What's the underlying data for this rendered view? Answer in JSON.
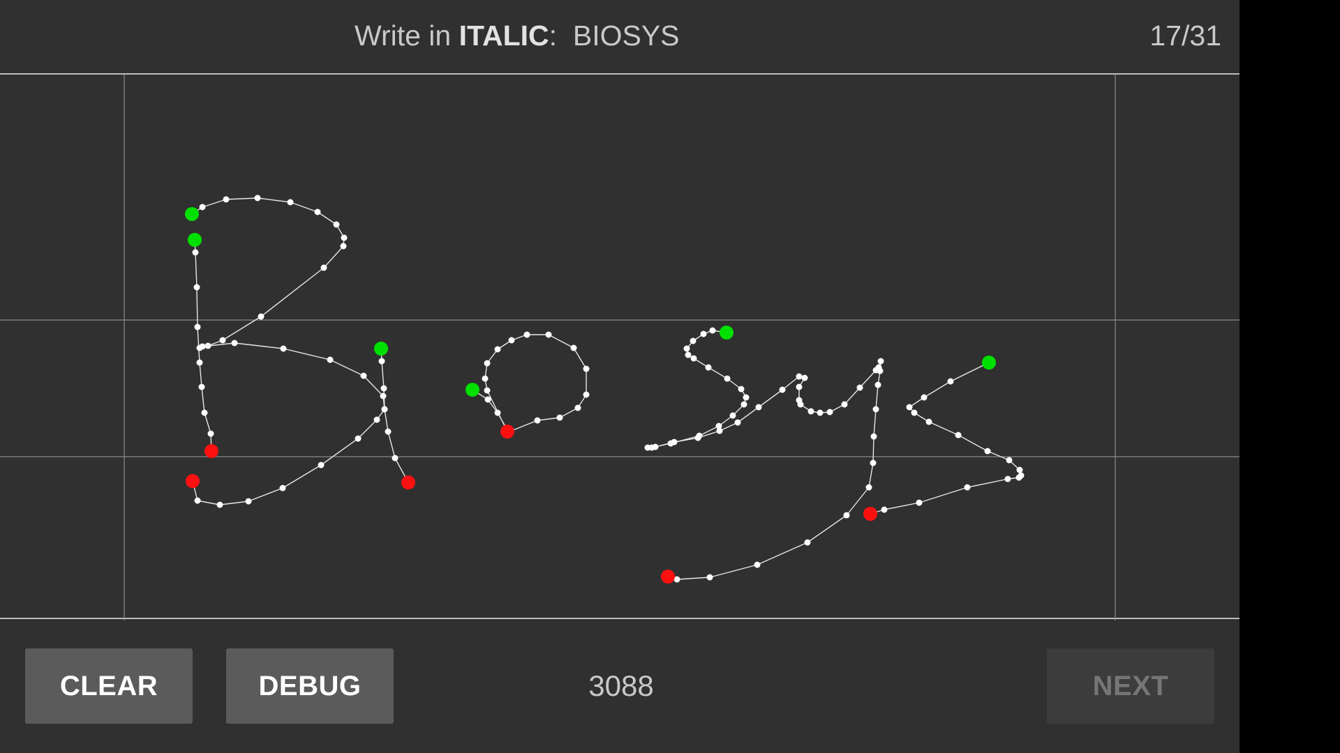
{
  "header": {
    "prompt_prefix": "Write in ",
    "prompt_style": "ITALIC",
    "prompt_suffix": ":",
    "prompt_word": "BIOSYS",
    "progress": "17/31"
  },
  "footer": {
    "clear_label": "CLEAR",
    "debug_label": "DEBUG",
    "counter": "3088",
    "next_label": "NEXT",
    "next_enabled": false
  },
  "colors": {
    "background": "#303030",
    "stroke_start": "#00e000",
    "stroke_end": "#ff1010",
    "sample_point": "#ffffff",
    "guide_line": "#8a8a8a"
  }
}
